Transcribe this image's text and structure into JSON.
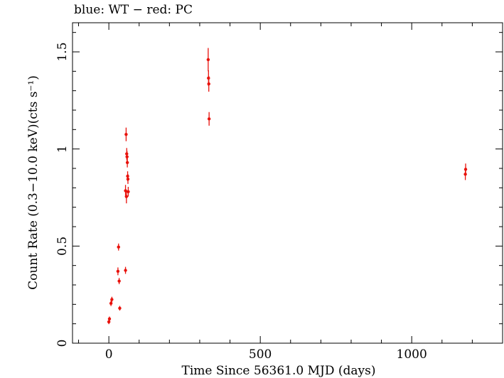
{
  "chart_data": {
    "type": "scatter",
    "title": "blue: WT − red: PC",
    "xlabel": "Time Since 56361.0 MJD (days)",
    "ylabel": "Count Rate (0.3−10.0 keV)(cts s⁻¹)",
    "xlim": [
      -120,
      1300
    ],
    "ylim": [
      0,
      1.65
    ],
    "xticks": [
      0,
      500,
      1000
    ],
    "yticks": [
      0,
      0.5,
      1,
      1.5
    ],
    "xtick_labels": [
      "0",
      "500",
      "1000"
    ],
    "ytick_labels": [
      "0",
      "0.5",
      "1",
      "1.5"
    ],
    "grid": false,
    "series": [
      {
        "name": "PC",
        "color": "#e8120c",
        "points": [
          {
            "x": 0,
            "y": 0.11,
            "err": 0.012
          },
          {
            "x": 2,
            "y": 0.125,
            "err": 0.012
          },
          {
            "x": 7,
            "y": 0.205,
            "err": 0.014
          },
          {
            "x": 10,
            "y": 0.225,
            "err": 0.014
          },
          {
            "x": 30,
            "y": 0.37,
            "err": 0.02
          },
          {
            "x": 32,
            "y": 0.495,
            "err": 0.018
          },
          {
            "x": 34,
            "y": 0.32,
            "err": 0.016
          },
          {
            "x": 36,
            "y": 0.18,
            "err": 0.012
          },
          {
            "x": 55,
            "y": 0.375,
            "err": 0.018
          },
          {
            "x": 55,
            "y": 0.785,
            "err": 0.03
          },
          {
            "x": 57,
            "y": 1.075,
            "err": 0.035
          },
          {
            "x": 58,
            "y": 0.755,
            "err": 0.035
          },
          {
            "x": 59,
            "y": 0.975,
            "err": 0.03
          },
          {
            "x": 60,
            "y": 0.96,
            "err": 0.03
          },
          {
            "x": 61,
            "y": 0.93,
            "err": 0.025
          },
          {
            "x": 62,
            "y": 0.86,
            "err": 0.025
          },
          {
            "x": 63,
            "y": 0.845,
            "err": 0.025
          },
          {
            "x": 64,
            "y": 0.78,
            "err": 0.025
          },
          {
            "x": 328,
            "y": 1.46,
            "err": 0.06
          },
          {
            "x": 329,
            "y": 1.365,
            "err": 0.04
          },
          {
            "x": 330,
            "y": 1.335,
            "err": 0.04
          },
          {
            "x": 331,
            "y": 1.155,
            "err": 0.035
          },
          {
            "x": 1177,
            "y": 0.87,
            "err": 0.03
          },
          {
            "x": 1178,
            "y": 0.895,
            "err": 0.03
          }
        ]
      }
    ]
  }
}
